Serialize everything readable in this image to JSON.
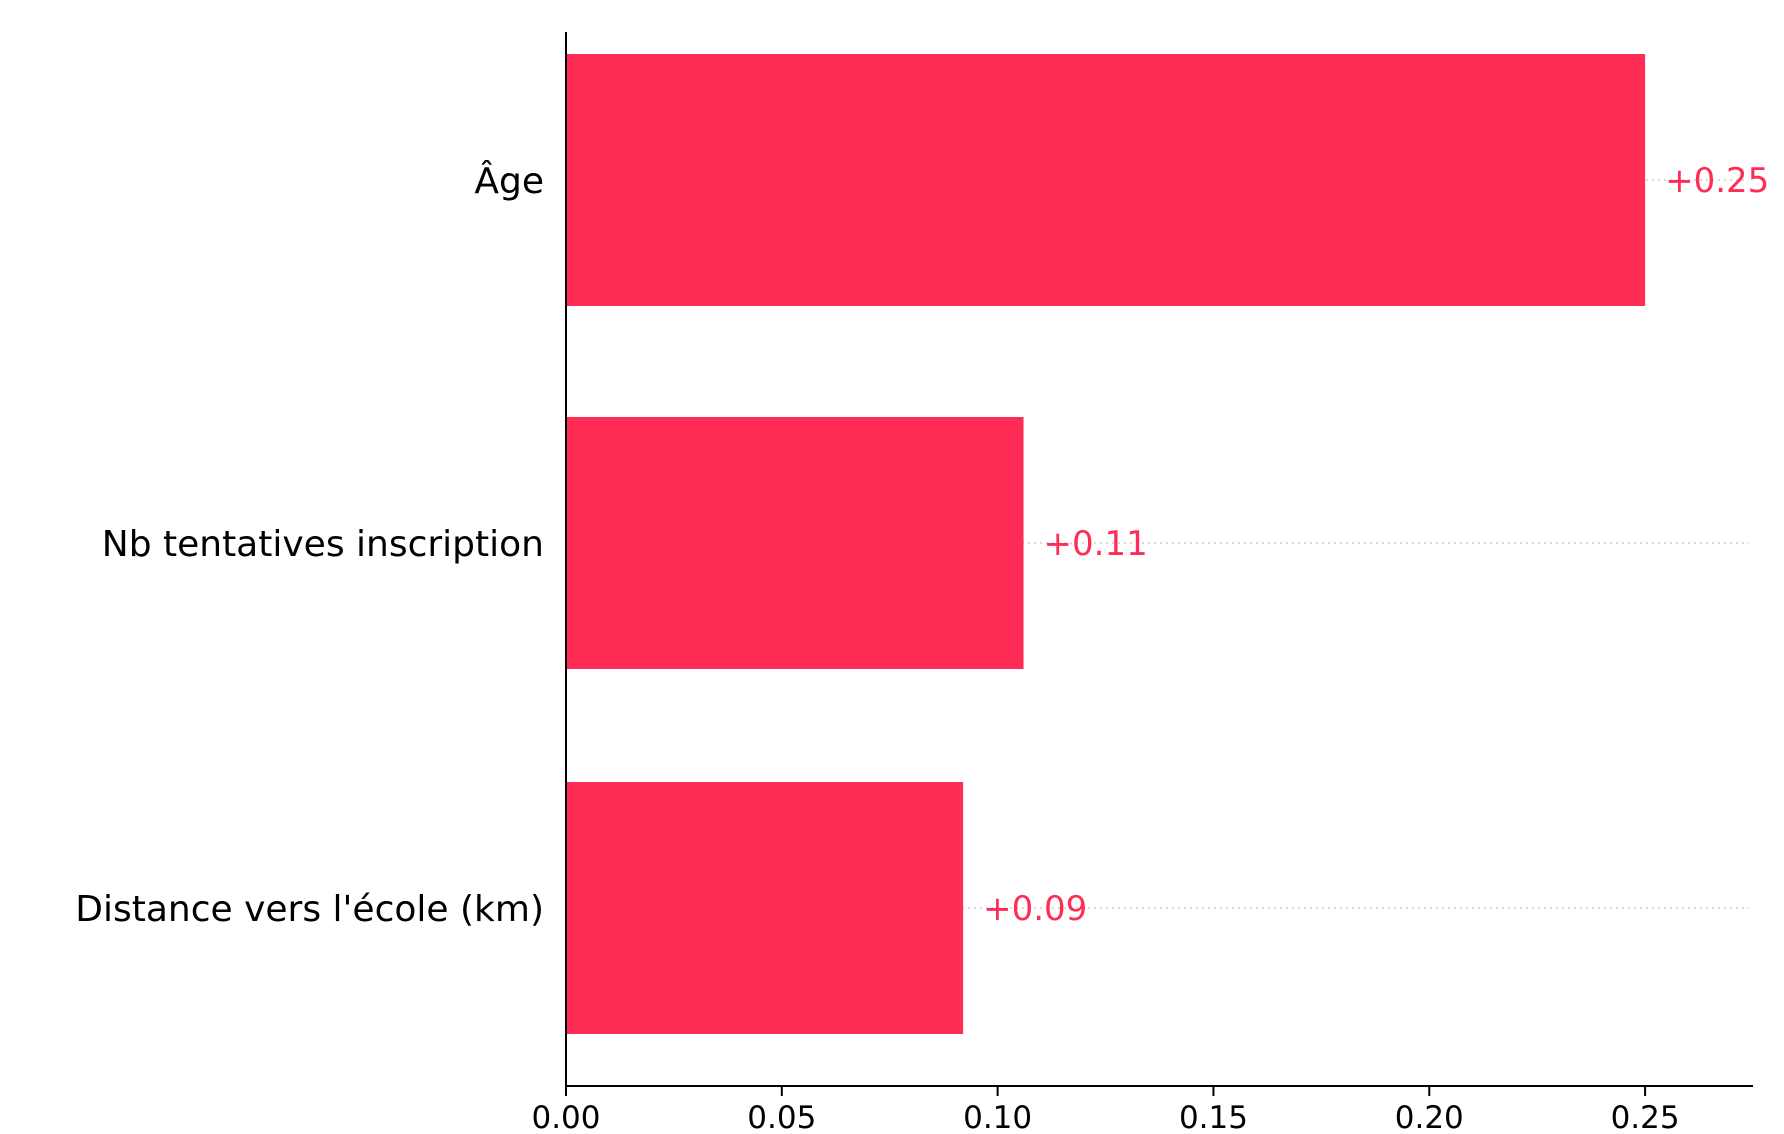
{
  "chart_data": {
    "type": "bar",
    "orientation": "horizontal",
    "categories": [
      "Âge",
      "Nb tentatives inscription",
      "Distance vers l'école (km)"
    ],
    "values": [
      0.25,
      0.106,
      0.092
    ],
    "value_labels": [
      "+0.25",
      "+0.11",
      "+0.09"
    ],
    "xlim": [
      0,
      0.275
    ],
    "xticks": [
      0.0,
      0.05,
      0.1,
      0.15,
      0.2,
      0.25
    ],
    "xtick_labels": [
      "0.00",
      "0.05",
      "0.10",
      "0.15",
      "0.20",
      "0.25"
    ],
    "bar_color": "#ff2d55",
    "label_color": "#ff2d55",
    "grid": "dotted row guides",
    "title": "",
    "xlabel": "",
    "ylabel": ""
  }
}
